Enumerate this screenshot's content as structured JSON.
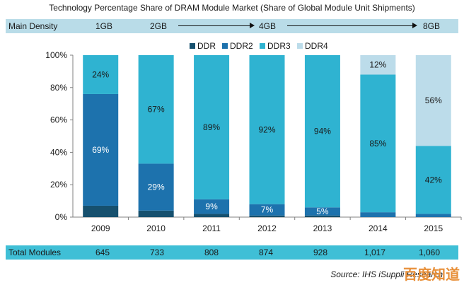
{
  "title": "Technology Percentage Share of DRAM Module Market (Share of Global Module Unit Shipments)",
  "density_row": {
    "label": "Main Density",
    "values": [
      "1GB",
      "2GB",
      "4GB",
      "8GB"
    ]
  },
  "totals_row": {
    "label": "Total Modules",
    "values": [
      "645",
      "733",
      "808",
      "874",
      "928",
      "1,017",
      "1,060"
    ]
  },
  "source": "Source: IHS iSuppli Research",
  "watermark": "百度知道",
  "colors": {
    "DDR": "#16506e",
    "DDR2": "#1d72ad",
    "DDR3": "#2fb3d1",
    "DDR4": "#bcdcea"
  },
  "chart_data": {
    "type": "bar",
    "stacked": true,
    "title": "Technology Percentage Share of DRAM Module Market (Share of Global Module Unit Shipments)",
    "xlabel": "",
    "ylabel": "",
    "ylim": [
      0,
      100
    ],
    "y_ticks": [
      "0%",
      "20%",
      "40%",
      "60%",
      "80%",
      "100%"
    ],
    "categories": [
      "2009",
      "2010",
      "2011",
      "2012",
      "2013",
      "2014",
      "2015"
    ],
    "series": [
      {
        "name": "DDR",
        "values": [
          7,
          4,
          2,
          1,
          1,
          0,
          0
        ]
      },
      {
        "name": "DDR2",
        "values": [
          69,
          29,
          9,
          7,
          5,
          3,
          2
        ]
      },
      {
        "name": "DDR3",
        "values": [
          24,
          67,
          89,
          92,
          94,
          85,
          42
        ]
      },
      {
        "name": "DDR4",
        "values": [
          0,
          0,
          0,
          0,
          0,
          12,
          56
        ]
      }
    ],
    "data_labels": [
      {
        "category": "2009",
        "series": "DDR3",
        "text": "24%"
      },
      {
        "category": "2009",
        "series": "DDR2",
        "text": "69%"
      },
      {
        "category": "2010",
        "series": "DDR3",
        "text": "67%"
      },
      {
        "category": "2010",
        "series": "DDR2",
        "text": "29%"
      },
      {
        "category": "2011",
        "series": "DDR3",
        "text": "89%"
      },
      {
        "category": "2011",
        "series": "DDR2",
        "text": "9%"
      },
      {
        "category": "2012",
        "series": "DDR3",
        "text": "92%"
      },
      {
        "category": "2012",
        "series": "DDR2",
        "text": "7%"
      },
      {
        "category": "2013",
        "series": "DDR3",
        "text": "94%"
      },
      {
        "category": "2013",
        "series": "DDR2",
        "text": "5%"
      },
      {
        "category": "2014",
        "series": "DDR4",
        "text": "12%"
      },
      {
        "category": "2014",
        "series": "DDR3",
        "text": "85%"
      },
      {
        "category": "2015",
        "series": "DDR4",
        "text": "56%"
      },
      {
        "category": "2015",
        "series": "DDR3",
        "text": "42%"
      }
    ],
    "legend": [
      "DDR",
      "DDR2",
      "DDR3",
      "DDR4"
    ],
    "legend_position": "top"
  }
}
